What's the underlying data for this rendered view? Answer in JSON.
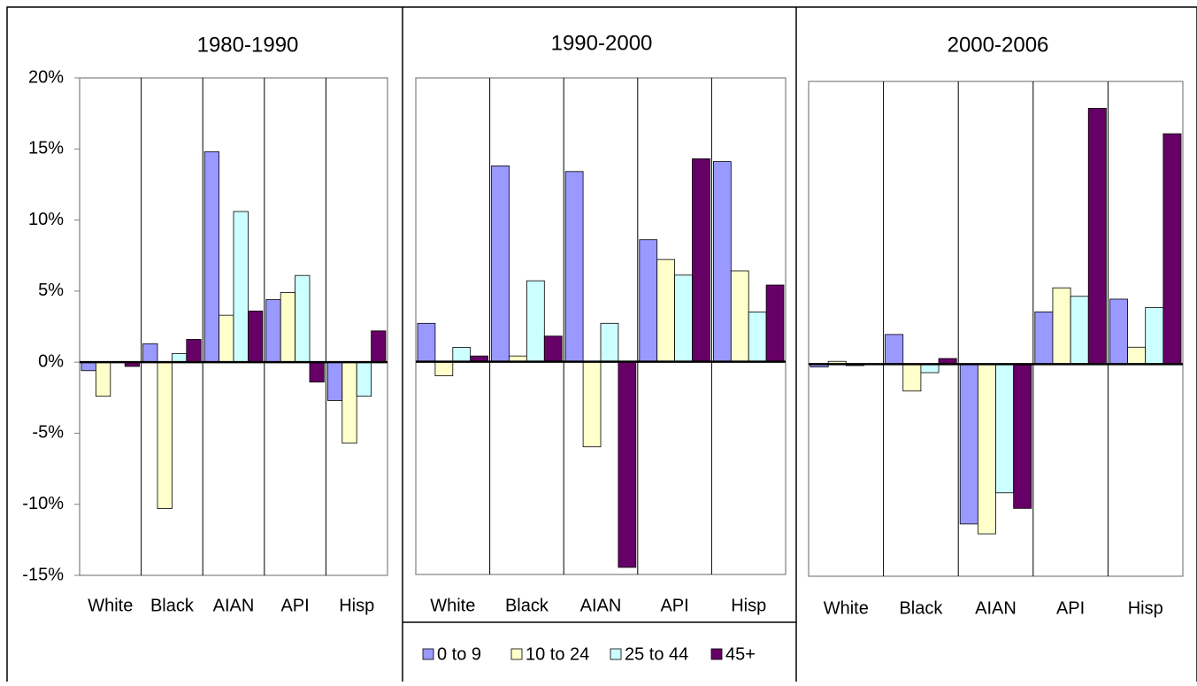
{
  "chart_data": [
    {
      "type": "bar",
      "title": "1980-1990",
      "categories": [
        "White",
        "Black",
        "AIAN",
        "API",
        "Hisp"
      ],
      "ylim": [
        -15,
        20
      ],
      "yticks": [
        {
          "value": 20,
          "label": "20%"
        },
        {
          "value": 15,
          "label": "15%"
        },
        {
          "value": 10,
          "label": "10%"
        },
        {
          "value": 5,
          "label": "5%"
        },
        {
          "value": 0,
          "label": "0%"
        },
        {
          "value": -5,
          "label": "-5%"
        },
        {
          "value": -10,
          "label": "-10%"
        },
        {
          "value": -15,
          "label": "-15%"
        }
      ],
      "series": [
        {
          "color": "#9999ff",
          "values": [
            -0.6,
            1.3,
            14.8,
            4.4,
            -2.7
          ]
        },
        {
          "color": "#ffffcc",
          "values": [
            -2.4,
            -10.3,
            3.3,
            4.9,
            -5.7
          ]
        },
        {
          "color": "#ccffff",
          "values": [
            0,
            0.6,
            10.6,
            6.1,
            -2.4
          ]
        },
        {
          "color": "#660066",
          "values": [
            -0.3,
            1.6,
            3.6,
            -1.4,
            2.2
          ]
        }
      ]
    },
    {
      "type": "bar",
      "title": "1990-2000",
      "categories": [
        "White",
        "Black",
        "AIAN",
        "API",
        "Hisp"
      ],
      "ylim": [
        -15,
        20
      ],
      "legend": "bottom",
      "series": [
        {
          "name": "0 to 9",
          "color": "#9999ff",
          "values": [
            2.7,
            13.8,
            13.4,
            8.6,
            14.1
          ]
        },
        {
          "name": "10 to 24",
          "color": "#ffffcc",
          "values": [
            -1.0,
            0.4,
            -6.0,
            7.2,
            6.4
          ]
        },
        {
          "name": "25 to 44",
          "color": "#ccffff",
          "values": [
            1.0,
            5.7,
            2.7,
            6.1,
            3.5
          ]
        },
        {
          "name": "45+",
          "color": "#660066",
          "values": [
            0.4,
            1.8,
            -14.5,
            14.3,
            5.4
          ]
        }
      ]
    },
    {
      "type": "bar",
      "title": "2000-2006",
      "categories": [
        "White",
        "Black",
        "AIAN",
        "API",
        "Hisp"
      ],
      "ylim": [
        -15,
        20
      ],
      "series": [
        {
          "color": "#9999ff",
          "values": [
            -0.2,
            2.1,
            -11.3,
            3.7,
            4.6
          ]
        },
        {
          "color": "#ffffcc",
          "values": [
            0.2,
            -1.9,
            -12.0,
            5.4,
            1.2
          ]
        },
        {
          "color": "#ccffff",
          "values": [
            -0.1,
            -0.6,
            -9.1,
            4.8,
            4.0
          ]
        },
        {
          "color": "#660066",
          "values": [
            0,
            0.4,
            -10.2,
            18.1,
            16.3
          ]
        }
      ]
    }
  ]
}
